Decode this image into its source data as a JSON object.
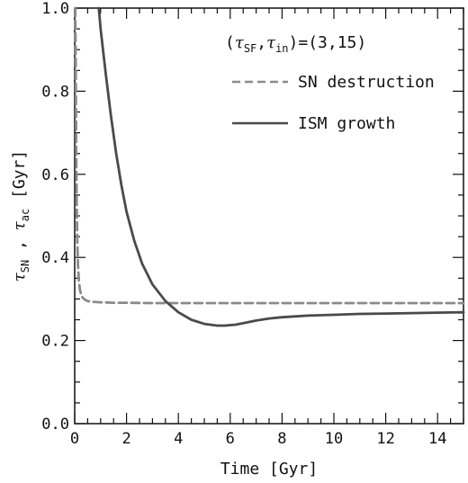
{
  "chart_data": {
    "type": "line",
    "xlabel": "Time [Gyr]",
    "ylabel_parts": {
      "tau1": "τ",
      "sub1": "SN",
      "sep": " , ",
      "tau2": "τ",
      "sub2": "ac",
      "unit": " [Gyr]"
    },
    "xlim": [
      0,
      15
    ],
    "ylim": [
      0,
      1.0
    ],
    "x_ticks": [
      0,
      2,
      4,
      6,
      8,
      10,
      12,
      14
    ],
    "x_tick_labels": [
      "0",
      "2",
      "4",
      "6",
      "8",
      "10",
      "12",
      "14"
    ],
    "y_ticks": [
      0.0,
      0.2,
      0.4,
      0.6,
      0.8,
      1.0
    ],
    "y_tick_labels": [
      "0.0",
      "0.2",
      "0.4",
      "0.6",
      "0.8",
      "1.0"
    ],
    "annotation": {
      "open": "(",
      "tau": "τ",
      "sub_sf": "SF",
      "comma": ",",
      "tau2": "τ",
      "sub_in": "in",
      "close": ")=(3,15)"
    },
    "legend_position": "top-right",
    "series": [
      {
        "name": "SN destruction",
        "style": "dashed",
        "color": "#8a8a8a",
        "x": [
          0.02,
          0.04,
          0.06,
          0.08,
          0.1,
          0.13,
          0.16,
          0.2,
          0.25,
          0.3,
          0.4,
          0.5,
          0.7,
          1.0,
          1.5,
          2.0,
          3.0,
          4.0,
          6.0,
          8.0,
          10.0,
          12.0,
          14.0,
          15.0
        ],
        "y": [
          1.0,
          0.85,
          0.65,
          0.52,
          0.44,
          0.38,
          0.345,
          0.322,
          0.31,
          0.304,
          0.298,
          0.295,
          0.293,
          0.292,
          0.291,
          0.291,
          0.29,
          0.29,
          0.29,
          0.29,
          0.29,
          0.29,
          0.29,
          0.29
        ]
      },
      {
        "name": "ISM growth",
        "style": "solid",
        "color": "#4a4a4a",
        "x": [
          0.93,
          1.0,
          1.2,
          1.4,
          1.6,
          1.8,
          2.0,
          2.3,
          2.6,
          3.0,
          3.5,
          4.0,
          4.5,
          5.0,
          5.5,
          5.8,
          6.2,
          6.6,
          7.0,
          7.5,
          8.0,
          9.0,
          10.0,
          11.0,
          12.0,
          13.0,
          14.0,
          15.0
        ],
        "y": [
          1.0,
          0.95,
          0.84,
          0.74,
          0.65,
          0.575,
          0.51,
          0.44,
          0.385,
          0.335,
          0.295,
          0.268,
          0.25,
          0.24,
          0.236,
          0.236,
          0.238,
          0.243,
          0.248,
          0.253,
          0.256,
          0.26,
          0.262,
          0.264,
          0.265,
          0.266,
          0.267,
          0.268
        ]
      }
    ]
  }
}
